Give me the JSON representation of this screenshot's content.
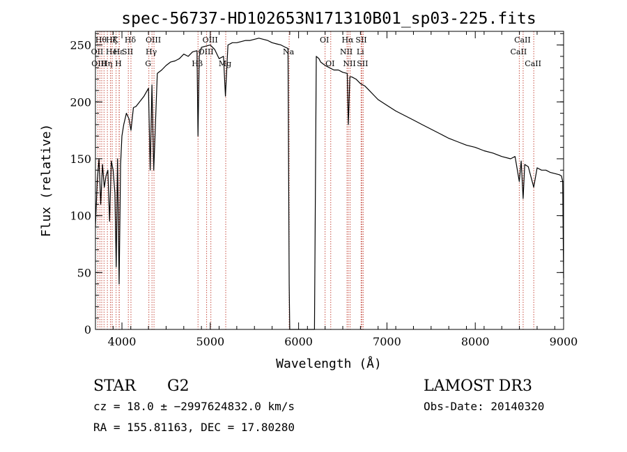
{
  "chart_data": {
    "type": "line",
    "title": "spec-56737-HD102653N171310B01_sp03-225.fits",
    "xlabel": "Wavelength (Å)",
    "ylabel": "Flux (relative)",
    "xlim": [
      3700,
      9000
    ],
    "ylim": [
      0,
      262
    ],
    "x_ticks": [
      4000,
      5000,
      6000,
      7000,
      8000,
      9000
    ],
    "y_ticks": [
      0,
      50,
      100,
      150,
      200,
      250
    ],
    "x_minor_step": 200,
    "y_minor_step": 10,
    "gap": [
      5900,
      6180
    ],
    "series": [
      {
        "color": "#000000",
        "x": [
          3700,
          3720,
          3740,
          3760,
          3780,
          3800,
          3820,
          3840,
          3860,
          3880,
          3900,
          3920,
          3935,
          3950,
          3968,
          3985,
          4000,
          4020,
          4050,
          4080,
          4102,
          4130,
          4160,
          4200,
          4250,
          4300,
          4320,
          4340,
          4360,
          4400,
          4450,
          4500,
          4550,
          4600,
          4650,
          4700,
          4750,
          4800,
          4850,
          4861,
          4875,
          4900,
          4950,
          5000,
          5050,
          5100,
          5150,
          5172,
          5200,
          5250,
          5300,
          5350,
          5400,
          5450,
          5500,
          5550,
          5600,
          5650,
          5700,
          5750,
          5800,
          5850,
          5880,
          5893,
          5900,
          6180,
          6200,
          6230,
          6250,
          6300,
          6350,
          6400,
          6450,
          6500,
          6550,
          6563,
          6580,
          6600,
          6650,
          6700,
          6750,
          6800,
          6850,
          6900,
          7000,
          7100,
          7200,
          7300,
          7400,
          7500,
          7600,
          7700,
          7800,
          7900,
          8000,
          8100,
          8200,
          8300,
          8400,
          8450,
          8498,
          8520,
          8542,
          8560,
          8600,
          8662,
          8700,
          8750,
          8800,
          8850,
          8900,
          8950,
          8975,
          8990,
          9000
        ],
        "y": [
          90,
          130,
          150,
          110,
          145,
          125,
          135,
          140,
          95,
          148,
          140,
          120,
          55,
          150,
          40,
          145,
          170,
          180,
          190,
          185,
          175,
          195,
          196,
          200,
          205,
          212,
          140,
          215,
          140,
          225,
          228,
          232,
          235,
          236,
          238,
          242,
          240,
          244,
          245,
          170,
          240,
          248,
          249,
          250,
          246,
          238,
          240,
          205,
          250,
          252,
          252,
          253,
          254,
          254,
          255,
          256,
          255,
          254,
          252,
          251,
          250,
          248,
          247,
          40,
          0,
          0,
          240,
          238,
          235,
          232,
          230,
          228,
          228,
          226,
          225,
          180,
          222,
          222,
          220,
          216,
          214,
          210,
          206,
          202,
          197,
          192,
          188,
          184,
          180,
          176,
          172,
          168,
          165,
          162,
          160,
          157,
          155,
          152,
          150,
          152,
          130,
          148,
          115,
          145,
          143,
          125,
          142,
          140,
          140,
          138,
          137,
          136,
          135,
          130,
          45
        ]
      }
    ],
    "lines": [
      {
        "x": 3727,
        "label": "OII",
        "row": 1
      },
      {
        "x": 3750,
        "label": "OIII",
        "row": 2
      },
      {
        "x": 3771,
        "label": "Hθ",
        "row": 0
      },
      {
        "x": 3797,
        "label": "",
        "row": 0
      },
      {
        "x": 3835,
        "label": "Hη",
        "row": 2
      },
      {
        "x": 3869,
        "label": "",
        "row": 1
      },
      {
        "x": 3889,
        "label": "Hζ",
        "row": 0
      },
      {
        "x": 3889,
        "label": "He",
        "row": 1
      },
      {
        "x": 3934,
        "label": "K",
        "row": 0
      },
      {
        "x": 3968,
        "label": "H",
        "row": 2
      },
      {
        "x": 3970,
        "label": "Hε",
        "row": 1
      },
      {
        "x": 4072,
        "label": "SII",
        "row": 1
      },
      {
        "x": 4102,
        "label": "Hδ",
        "row": 0
      },
      {
        "x": 4305,
        "label": "G",
        "row": 2
      },
      {
        "x": 4340,
        "label": "Hγ",
        "row": 1
      },
      {
        "x": 4363,
        "label": "OIII",
        "row": 0
      },
      {
        "x": 4861,
        "label": "Hβ",
        "row": 2
      },
      {
        "x": 4959,
        "label": "OIII",
        "row": 1
      },
      {
        "x": 5007,
        "label": "OIII",
        "row": 0
      },
      {
        "x": 5175,
        "label": "Mg",
        "row": 2
      },
      {
        "x": 5893,
        "label": "Na",
        "row": 1
      },
      {
        "x": 6300,
        "label": "OI",
        "row": 0
      },
      {
        "x": 6364,
        "label": "OI",
        "row": 2
      },
      {
        "x": 6548,
        "label": "NII",
        "row": 1
      },
      {
        "x": 6563,
        "label": "Hα",
        "row": 0
      },
      {
        "x": 6583,
        "label": "NII",
        "row": 2
      },
      {
        "x": 6707,
        "label": "Li",
        "row": 1
      },
      {
        "x": 6717,
        "label": "SII",
        "row": 0
      },
      {
        "x": 6731,
        "label": "SII",
        "row": 2
      },
      {
        "x": 8498,
        "label": "CaII",
        "row": 1
      },
      {
        "x": 8542,
        "label": "CaII",
        "row": 0
      },
      {
        "x": 8662,
        "label": "CaII",
        "row": 2
      }
    ]
  },
  "info": {
    "class_label": "STAR",
    "subclass_label": "G2",
    "survey": "LAMOST DR3",
    "cz_line": "cz = 18.0 ± −2997624832.0 km/s",
    "obs_date_line": "Obs-Date: 20140320",
    "radec_line": "RA = 155.81163, DEC =  17.80280"
  }
}
